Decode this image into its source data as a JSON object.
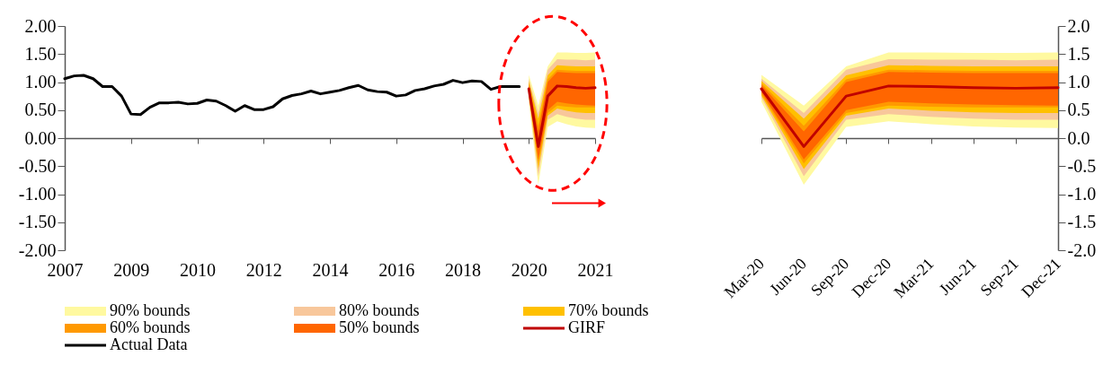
{
  "chart_data": [
    {
      "type": "line",
      "legend": "bottom",
      "categories": [
        "2007",
        null,
        null,
        null,
        null,
        null,
        null,
        "2009",
        null,
        null,
        null,
        null,
        null,
        null,
        "2010",
        null,
        null,
        null,
        null,
        null,
        null,
        "2012",
        null,
        null,
        null,
        null,
        null,
        null,
        "2014",
        null,
        null,
        null,
        null,
        null,
        null,
        "2016",
        null,
        null,
        null,
        null,
        null,
        null,
        "2018",
        null,
        null,
        null,
        null,
        null,
        null,
        "2020",
        null,
        null,
        null,
        null,
        null,
        null,
        "2021"
      ],
      "ylim": [
        -2,
        2
      ],
      "yticks": [
        {
          "value": 2,
          "label": "2.00"
        },
        {
          "value": 1.5,
          "label": "1.50"
        },
        {
          "value": 1,
          "label": "1.00"
        },
        {
          "value": 0.5,
          "label": "0.50"
        },
        {
          "value": 0,
          "label": "0.00"
        },
        {
          "value": -0.5,
          "label": "-0.50"
        },
        {
          "value": -1,
          "label": "-1.00"
        },
        {
          "value": -1.5,
          "label": "-1.50"
        },
        {
          "value": -2,
          "label": "-2.00"
        }
      ],
      "series": [
        {
          "name": "90% bounds",
          "color": "#fff9a0",
          "values": [
            null,
            null,
            null,
            null,
            null,
            null,
            null,
            null,
            null,
            null,
            null,
            null,
            null,
            null,
            null,
            null,
            null,
            null,
            null,
            null,
            null,
            null,
            null,
            null,
            null,
            null,
            null,
            null,
            null,
            null,
            null,
            null,
            null,
            null,
            null,
            null,
            null,
            null,
            null,
            null,
            null,
            null,
            null,
            null,
            null,
            null,
            null,
            null,
            null,
            null,
            null,
            null,
            null,
            null,
            null,
            null,
            null
          ],
          "lower": [
            null,
            null,
            null,
            null,
            null,
            null,
            null,
            null,
            null,
            null,
            null,
            null,
            null,
            null,
            null,
            null,
            null,
            null,
            null,
            null,
            null,
            null,
            null,
            null,
            null,
            null,
            null,
            null,
            null,
            null,
            null,
            null,
            null,
            null,
            null,
            null,
            null,
            null,
            null,
            null,
            null,
            null,
            null,
            null,
            null,
            null,
            null,
            null,
            null,
            0.65,
            -0.83,
            0.2,
            0.3,
            0.25,
            0.21,
            0.19,
            0.18
          ],
          "upper": [
            null,
            null,
            null,
            null,
            null,
            null,
            null,
            null,
            null,
            null,
            null,
            null,
            null,
            null,
            null,
            null,
            null,
            null,
            null,
            null,
            null,
            null,
            null,
            null,
            null,
            null,
            null,
            null,
            null,
            null,
            null,
            null,
            null,
            null,
            null,
            null,
            null,
            null,
            null,
            null,
            null,
            null,
            null,
            null,
            null,
            null,
            null,
            null,
            null,
            1.13,
            0.58,
            1.28,
            1.53,
            1.53,
            1.52,
            1.52,
            1.53
          ]
        },
        {
          "name": "80% bounds",
          "color": "#f8c79b",
          "values": [
            null,
            null,
            null,
            null,
            null,
            null,
            null,
            null,
            null,
            null,
            null,
            null,
            null,
            null,
            null,
            null,
            null,
            null,
            null,
            null,
            null,
            null,
            null,
            null,
            null,
            null,
            null,
            null,
            null,
            null,
            null,
            null,
            null,
            null,
            null,
            null,
            null,
            null,
            null,
            null,
            null,
            null,
            null,
            null,
            null,
            null,
            null,
            null,
            null,
            null,
            null,
            null,
            null,
            null,
            null,
            null,
            null
          ],
          "lower": [
            null,
            null,
            null,
            null,
            null,
            null,
            null,
            null,
            null,
            null,
            null,
            null,
            null,
            null,
            null,
            null,
            null,
            null,
            null,
            null,
            null,
            null,
            null,
            null,
            null,
            null,
            null,
            null,
            null,
            null,
            null,
            null,
            null,
            null,
            null,
            null,
            null,
            null,
            null,
            null,
            null,
            null,
            null,
            null,
            null,
            null,
            null,
            null,
            null,
            0.72,
            -0.68,
            0.33,
            0.43,
            0.38,
            0.35,
            0.33,
            0.33
          ],
          "upper": [
            null,
            null,
            null,
            null,
            null,
            null,
            null,
            null,
            null,
            null,
            null,
            null,
            null,
            null,
            null,
            null,
            null,
            null,
            null,
            null,
            null,
            null,
            null,
            null,
            null,
            null,
            null,
            null,
            null,
            null,
            null,
            null,
            null,
            null,
            null,
            null,
            null,
            null,
            null,
            null,
            null,
            null,
            null,
            null,
            null,
            null,
            null,
            null,
            null,
            1.06,
            0.45,
            1.22,
            1.41,
            1.4,
            1.4,
            1.39,
            1.4
          ]
        },
        {
          "name": "70% bounds",
          "color": "#ffc000",
          "values": [
            null,
            null,
            null,
            null,
            null,
            null,
            null,
            null,
            null,
            null,
            null,
            null,
            null,
            null,
            null,
            null,
            null,
            null,
            null,
            null,
            null,
            null,
            null,
            null,
            null,
            null,
            null,
            null,
            null,
            null,
            null,
            null,
            null,
            null,
            null,
            null,
            null,
            null,
            null,
            null,
            null,
            null,
            null,
            null,
            null,
            null,
            null,
            null,
            null,
            null,
            null,
            null,
            null,
            null,
            null,
            null,
            null
          ],
          "lower": [
            null,
            null,
            null,
            null,
            null,
            null,
            null,
            null,
            null,
            null,
            null,
            null,
            null,
            null,
            null,
            null,
            null,
            null,
            null,
            null,
            null,
            null,
            null,
            null,
            null,
            null,
            null,
            null,
            null,
            null,
            null,
            null,
            null,
            null,
            null,
            null,
            null,
            null,
            null,
            null,
            null,
            null,
            null,
            null,
            null,
            null,
            null,
            null,
            null,
            0.76,
            -0.55,
            0.4,
            0.53,
            0.49,
            0.46,
            0.45,
            0.45
          ],
          "upper": [
            null,
            null,
            null,
            null,
            null,
            null,
            null,
            null,
            null,
            null,
            null,
            null,
            null,
            null,
            null,
            null,
            null,
            null,
            null,
            null,
            null,
            null,
            null,
            null,
            null,
            null,
            null,
            null,
            null,
            null,
            null,
            null,
            null,
            null,
            null,
            null,
            null,
            null,
            null,
            null,
            null,
            null,
            null,
            null,
            null,
            null,
            null,
            null,
            null,
            1.02,
            0.35,
            1.12,
            1.3,
            1.29,
            1.28,
            1.28,
            1.28
          ]
        },
        {
          "name": "60% bounds",
          "color": "#ff9900",
          "values": [
            null,
            null,
            null,
            null,
            null,
            null,
            null,
            null,
            null,
            null,
            null,
            null,
            null,
            null,
            null,
            null,
            null,
            null,
            null,
            null,
            null,
            null,
            null,
            null,
            null,
            null,
            null,
            null,
            null,
            null,
            null,
            null,
            null,
            null,
            null,
            null,
            null,
            null,
            null,
            null,
            null,
            null,
            null,
            null,
            null,
            null,
            null,
            null,
            null,
            null,
            null,
            null,
            null,
            null,
            null,
            null,
            null
          ],
          "lower": [
            null,
            null,
            null,
            null,
            null,
            null,
            null,
            null,
            null,
            null,
            null,
            null,
            null,
            null,
            null,
            null,
            null,
            null,
            null,
            null,
            null,
            null,
            null,
            null,
            null,
            null,
            null,
            null,
            null,
            null,
            null,
            null,
            null,
            null,
            null,
            null,
            null,
            null,
            null,
            null,
            null,
            null,
            null,
            null,
            null,
            null,
            null,
            null,
            null,
            0.79,
            -0.45,
            0.45,
            0.58,
            0.56,
            0.55,
            0.55,
            0.55
          ],
          "upper": [
            null,
            null,
            null,
            null,
            null,
            null,
            null,
            null,
            null,
            null,
            null,
            null,
            null,
            null,
            null,
            null,
            null,
            null,
            null,
            null,
            null,
            null,
            null,
            null,
            null,
            null,
            null,
            null,
            null,
            null,
            null,
            null,
            null,
            null,
            null,
            null,
            null,
            null,
            null,
            null,
            null,
            null,
            null,
            null,
            null,
            null,
            null,
            null,
            null,
            0.98,
            0.22,
            1.05,
            1.22,
            1.21,
            1.2,
            1.2,
            1.2
          ]
        },
        {
          "name": "50% bounds",
          "color": "#ff6600",
          "values": [
            null,
            null,
            null,
            null,
            null,
            null,
            null,
            null,
            null,
            null,
            null,
            null,
            null,
            null,
            null,
            null,
            null,
            null,
            null,
            null,
            null,
            null,
            null,
            null,
            null,
            null,
            null,
            null,
            null,
            null,
            null,
            null,
            null,
            null,
            null,
            null,
            null,
            null,
            null,
            null,
            null,
            null,
            null,
            null,
            null,
            null,
            null,
            null,
            null,
            null,
            null,
            null,
            null,
            null,
            null,
            null,
            null
          ],
          "lower": [
            null,
            null,
            null,
            null,
            null,
            null,
            null,
            null,
            null,
            null,
            null,
            null,
            null,
            null,
            null,
            null,
            null,
            null,
            null,
            null,
            null,
            null,
            null,
            null,
            null,
            null,
            null,
            null,
            null,
            null,
            null,
            null,
            null,
            null,
            null,
            null,
            null,
            null,
            null,
            null,
            null,
            null,
            null,
            null,
            null,
            null,
            null,
            null,
            null,
            0.82,
            -0.38,
            0.5,
            0.65,
            0.62,
            0.6,
            0.59,
            0.58
          ],
          "upper": [
            null,
            null,
            null,
            null,
            null,
            null,
            null,
            null,
            null,
            null,
            null,
            null,
            null,
            null,
            null,
            null,
            null,
            null,
            null,
            null,
            null,
            null,
            null,
            null,
            null,
            null,
            null,
            null,
            null,
            null,
            null,
            null,
            null,
            null,
            null,
            null,
            null,
            null,
            null,
            null,
            null,
            null,
            null,
            null,
            null,
            null,
            null,
            null,
            null,
            0.95,
            0.12,
            1.0,
            1.18,
            1.17,
            1.16,
            1.16,
            1.16
          ]
        },
        {
          "name": "GIRF",
          "color": "#c00000",
          "values": [
            null,
            null,
            null,
            null,
            null,
            null,
            null,
            null,
            null,
            null,
            null,
            null,
            null,
            null,
            null,
            null,
            null,
            null,
            null,
            null,
            null,
            null,
            null,
            null,
            null,
            null,
            null,
            null,
            null,
            null,
            null,
            null,
            null,
            null,
            null,
            null,
            null,
            null,
            null,
            null,
            null,
            null,
            null,
            null,
            null,
            null,
            null,
            null,
            null,
            0.88,
            -0.15,
            0.75,
            0.93,
            0.92,
            0.9,
            0.89,
            0.9
          ]
        },
        {
          "name": "Actual Data",
          "color": "#000000",
          "values": [
            1.06,
            1.11,
            1.12,
            1.06,
            0.92,
            0.92,
            0.75,
            0.43,
            0.42,
            0.55,
            0.63,
            0.63,
            0.64,
            0.61,
            0.62,
            0.68,
            0.66,
            0.58,
            0.48,
            0.58,
            0.51,
            0.51,
            0.56,
            0.7,
            0.76,
            0.79,
            0.84,
            0.79,
            0.82,
            0.85,
            0.9,
            0.94,
            0.86,
            0.83,
            0.82,
            0.75,
            0.77,
            0.85,
            0.88,
            0.93,
            0.96,
            1.03,
            0.99,
            1.02,
            1.01,
            0.87,
            0.92,
            0.92,
            0.92,
            null,
            null,
            null,
            null,
            null,
            null,
            null,
            null
          ]
        }
      ]
    },
    {
      "type": "line",
      "categories": [
        "Mar-20",
        "Jun-20",
        "Sep-20",
        "Dec-20",
        "Mar-21",
        "Jun-21",
        "Sep-21",
        "Dec-21"
      ],
      "ylim": [
        -2,
        2
      ],
      "yticks": [
        {
          "value": 2,
          "label": "2.0"
        },
        {
          "value": 1.5,
          "label": "1.5"
        },
        {
          "value": 1,
          "label": "1.0"
        },
        {
          "value": 0.5,
          "label": "0.5"
        },
        {
          "value": 0,
          "label": "0.0"
        },
        {
          "value": -0.5,
          "label": "-0.5"
        },
        {
          "value": -1,
          "label": "-1.0"
        },
        {
          "value": -1.5,
          "label": "-1.5"
        },
        {
          "value": -2,
          "label": "-2.0"
        }
      ],
      "series": [
        {
          "color": "#fff9a0",
          "values": [
            null,
            null,
            null,
            null,
            null,
            null,
            null,
            null
          ],
          "lower": [
            0.65,
            -0.83,
            0.2,
            0.3,
            0.25,
            0.21,
            0.19,
            0.18
          ],
          "upper": [
            1.13,
            0.58,
            1.28,
            1.53,
            1.53,
            1.52,
            1.52,
            1.53
          ]
        },
        {
          "color": "#f8c79b",
          "values": [
            null,
            null,
            null,
            null,
            null,
            null,
            null,
            null
          ],
          "lower": [
            0.72,
            -0.68,
            0.33,
            0.43,
            0.38,
            0.35,
            0.33,
            0.33
          ],
          "upper": [
            1.06,
            0.45,
            1.22,
            1.41,
            1.4,
            1.4,
            1.39,
            1.4
          ]
        },
        {
          "color": "#ffc000",
          "values": [
            null,
            null,
            null,
            null,
            null,
            null,
            null,
            null
          ],
          "lower": [
            0.76,
            -0.55,
            0.4,
            0.53,
            0.49,
            0.46,
            0.45,
            0.45
          ],
          "upper": [
            1.02,
            0.35,
            1.12,
            1.3,
            1.29,
            1.28,
            1.28,
            1.28
          ]
        },
        {
          "color": "#ff9900",
          "values": [
            null,
            null,
            null,
            null,
            null,
            null,
            null,
            null
          ],
          "lower": [
            0.79,
            -0.45,
            0.45,
            0.58,
            0.56,
            0.55,
            0.55,
            0.55
          ],
          "upper": [
            0.98,
            0.22,
            1.05,
            1.22,
            1.21,
            1.2,
            1.2,
            1.2
          ]
        },
        {
          "color": "#ff6600",
          "values": [
            null,
            null,
            null,
            null,
            null,
            null,
            null,
            null
          ],
          "lower": [
            0.82,
            -0.38,
            0.5,
            0.65,
            0.62,
            0.6,
            0.59,
            0.58
          ],
          "upper": [
            0.95,
            0.12,
            1.0,
            1.18,
            1.17,
            1.16,
            1.16,
            1.16
          ]
        },
        {
          "color": "#c00000",
          "values": [
            0.88,
            -0.15,
            0.75,
            0.93,
            0.92,
            0.9,
            0.89,
            0.9
          ]
        }
      ]
    }
  ]
}
